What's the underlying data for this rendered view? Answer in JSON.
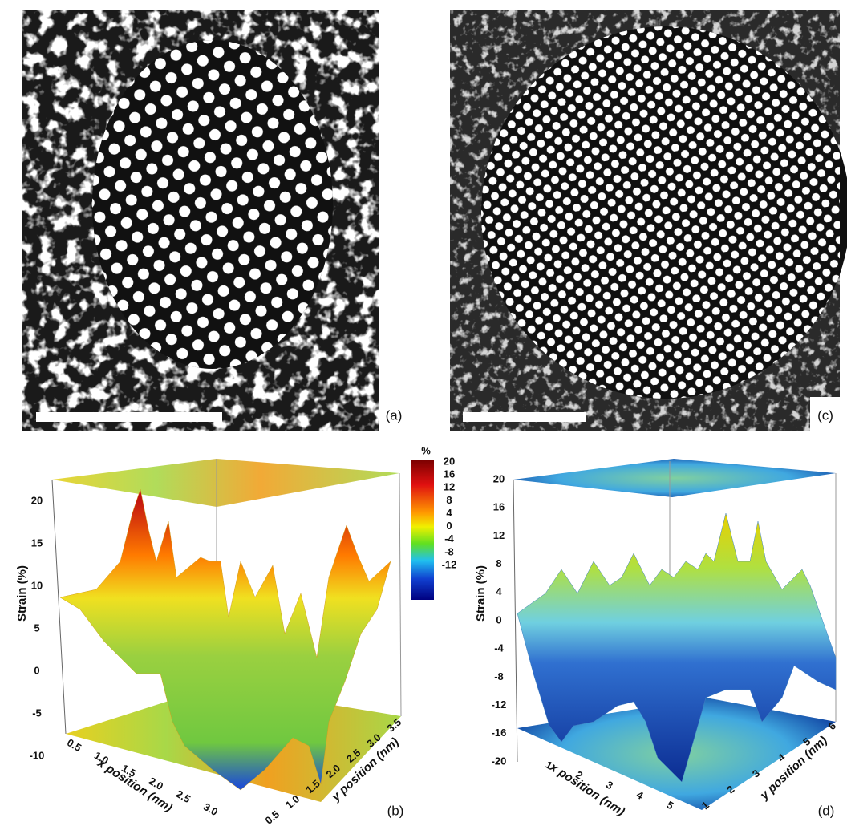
{
  "panel_a": {
    "label": "(a)"
  },
  "panel_c": {
    "label": "(c)"
  },
  "panel_b": {
    "label": "(b)",
    "z_axis_label": "Strain (%)",
    "x_axis_label": "x position (nm)",
    "y_axis_label": "y position (nm)",
    "z_ticks": [
      "20",
      "15",
      "10",
      "5",
      "0",
      "-5",
      "-10"
    ],
    "x_ticks": [
      "0.5",
      "1.0",
      "1.5",
      "2.0",
      "2.5",
      "3.0"
    ],
    "y_ticks": [
      "0.5",
      "1.0",
      "1.5",
      "2.0",
      "2.5",
      "3.0",
      "3.5"
    ]
  },
  "panel_d": {
    "label": "(d)",
    "z_axis_label": "Strain (%)",
    "x_axis_label": "x position (nm)",
    "y_axis_label": "y position (nm)",
    "z_ticks": [
      "20",
      "16",
      "12",
      "8",
      "4",
      "0",
      "-4",
      "-8",
      "-12",
      "-16",
      "-20"
    ],
    "x_ticks": [
      "1",
      "2",
      "3",
      "4",
      "5"
    ],
    "y_ticks": [
      "1",
      "2",
      "3",
      "4",
      "5",
      "6"
    ]
  },
  "colorbar": {
    "unit": "%",
    "ticks": [
      "20",
      "16",
      "12",
      "8",
      "4",
      "0",
      "-4",
      "-8",
      "-12"
    ]
  }
}
